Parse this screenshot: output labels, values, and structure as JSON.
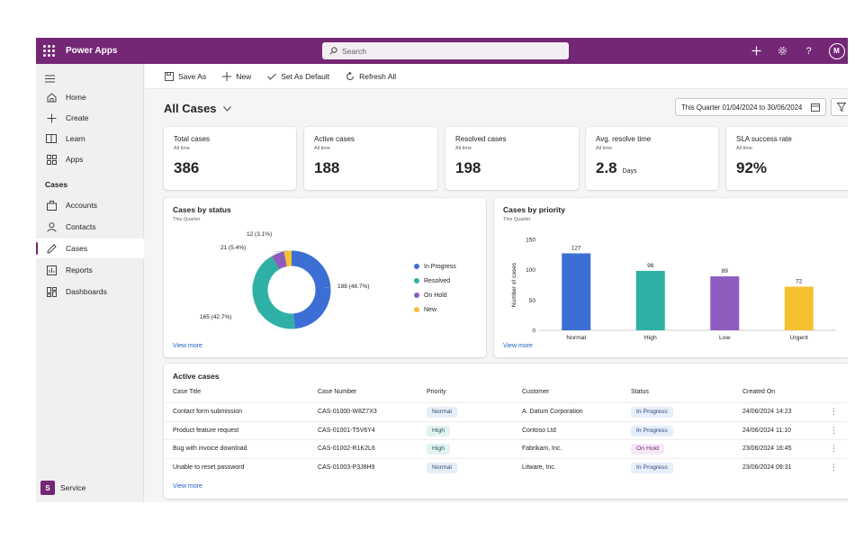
{
  "topbar": {
    "app_name": "Power Apps",
    "search_placeholder": "Search",
    "avatar_initial": "M"
  },
  "sidebar": {
    "items_top": [
      {
        "label": "Home",
        "icon": "home-icon",
        "active": false
      },
      {
        "label": "Create",
        "icon": "plus-icon",
        "active": false
      },
      {
        "label": "Learn",
        "icon": "book-icon",
        "active": false
      },
      {
        "label": "Apps",
        "icon": "apps-icon",
        "active": false
      }
    ],
    "section_label": "Cases",
    "items_section": [
      {
        "label": "Accounts",
        "icon": "briefcase-icon",
        "active": false
      },
      {
        "label": "Contacts",
        "icon": "person-icon",
        "active": false
      },
      {
        "label": "Cases",
        "icon": "pen-icon",
        "active": true
      },
      {
        "label": "Reports",
        "icon": "report-icon",
        "active": false
      },
      {
        "label": "Dashboards",
        "icon": "dashboard-icon",
        "active": false
      }
    ],
    "area": {
      "initial": "S",
      "label": "Service"
    }
  },
  "commandbar": {
    "save_as": "Save As",
    "new": "New",
    "set_default": "Set As Default",
    "refresh_all": "Refresh All"
  },
  "page": {
    "title": "All Cases",
    "date_range": "This Quarter 01/04/2024 to 30/06/2024"
  },
  "kpis": [
    {
      "label": "Total cases",
      "sub": "All time",
      "value": "386",
      "unit": ""
    },
    {
      "label": "Active cases",
      "sub": "All time",
      "value": "188",
      "unit": ""
    },
    {
      "label": "Resolved cases",
      "sub": "All time",
      "value": "198",
      "unit": ""
    },
    {
      "label": "Avg. resolve time",
      "sub": "All time",
      "value": "2.8",
      "unit": "Days"
    },
    {
      "label": "SLA success rate",
      "sub": "All time",
      "value": "92%",
      "unit": ""
    }
  ],
  "status_chart": {
    "title": "Cases by status",
    "subtitle": "This Quarter",
    "view_more": "View more",
    "chart_data": {
      "type": "pie",
      "title": "Cases by status",
      "subtitle": "This Quarter",
      "legend_position": "right",
      "slices": [
        {
          "name": "In Progress",
          "value": 188,
          "label": "188 (48.7%)",
          "color": "#3b6fd6"
        },
        {
          "name": "Resolved",
          "value": 165,
          "label": "165 (42.7%)",
          "color": "#2fb0a6"
        },
        {
          "name": "On Hold",
          "value": 21,
          "label": "21 (5.4%)",
          "color": "#8e5cbf"
        },
        {
          "name": "New",
          "value": 12,
          "label": "12 (3.1%)",
          "color": "#f6c130"
        }
      ]
    }
  },
  "priority_chart": {
    "title": "Cases by priority",
    "subtitle": "This Quarter",
    "view_more": "View more",
    "chart_data": {
      "type": "bar",
      "title": "Cases by priority",
      "subtitle": "This Quarter",
      "categories": [
        "Normal",
        "High",
        "Low",
        "Urgent"
      ],
      "values": [
        127,
        98,
        89,
        72
      ],
      "colors": [
        "#3b6fd6",
        "#2fb0a6",
        "#8e5cbf",
        "#f6c130"
      ],
      "ylabel": "Number of cases",
      "xlabel": "",
      "ylim": [
        0,
        150
      ],
      "yticks": [
        0,
        50,
        100,
        150
      ],
      "grid": false
    }
  },
  "active_cases": {
    "title": "Active cases",
    "view_more": "View more",
    "columns": [
      "Case Title",
      "Case Number",
      "Priority",
      "Customer",
      "Status",
      "Created On"
    ],
    "rows": [
      {
        "title": "Contact form submission",
        "number": "CAS-01000-W8Z7X3",
        "priority": "Normal",
        "customer": "A. Datum Corporation",
        "status": "In Progress",
        "created": "24/06/2024 14:23"
      },
      {
        "title": "Product feature request",
        "number": "CAS-01001-T5V6Y4",
        "priority": "High",
        "customer": "Contoso Ltd",
        "status": "In Progress",
        "created": "24/06/2024 11:10"
      },
      {
        "title": "Bug with invoice download",
        "number": "CAS-01002-R1K2L6",
        "priority": "High",
        "customer": "Fabrikam, Inc.",
        "status": "On Hold",
        "created": "23/06/2024 16:45"
      },
      {
        "title": "Unable to reset password",
        "number": "CAS-01003-P3J8H9",
        "priority": "Normal",
        "customer": "Litware, Inc.",
        "status": "In Progress",
        "created": "23/06/2024 09:31"
      }
    ]
  }
}
